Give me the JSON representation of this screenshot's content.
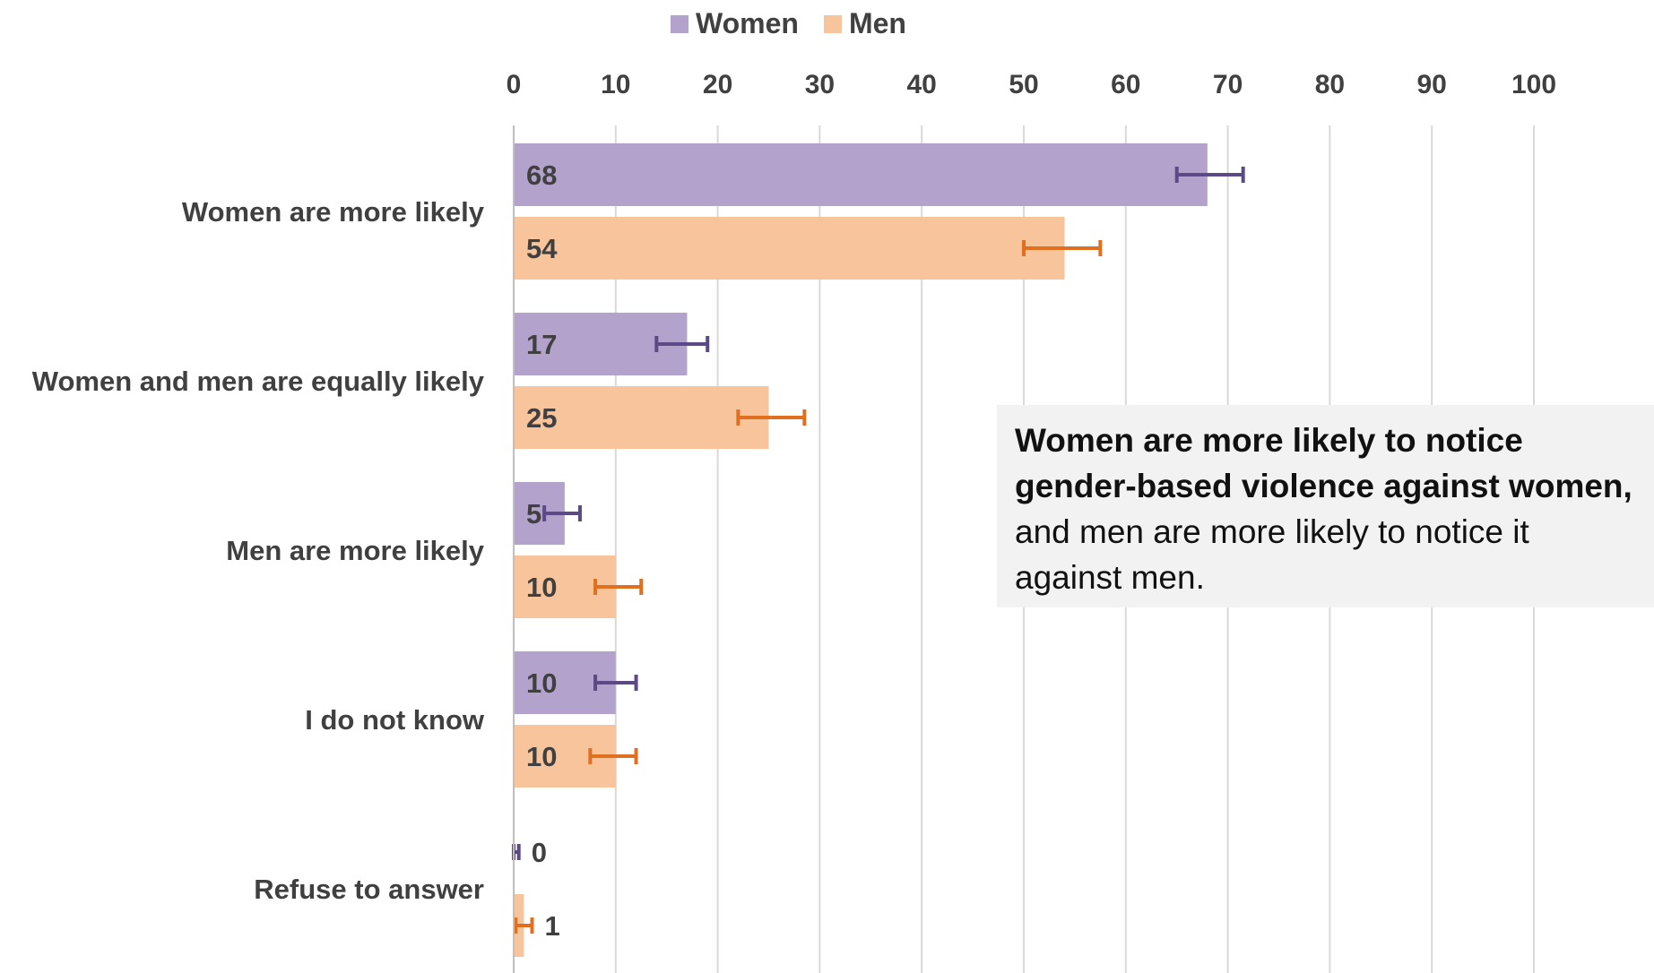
{
  "legend": {
    "women_label": "Women",
    "men_label": "Men"
  },
  "colors": {
    "women_bar": "#b3a2cc",
    "men_bar": "#f7c49b",
    "women_error": "#5b4a85",
    "men_error": "#e0701f",
    "grid": "#d9d9d9",
    "text": "#404040"
  },
  "callout": {
    "bold_text": "Women are more likely to notice gender-based violence against women,",
    "regular_text": "and men are more likely to notice it against men."
  },
  "chart_data": {
    "type": "bar",
    "orientation": "horizontal",
    "categories": [
      "Women are more likely",
      "Women and men are equally likely",
      "Men are more likely",
      "I do not know",
      "Refuse to answer"
    ],
    "series": [
      {
        "name": "Women",
        "values": [
          68,
          17,
          5,
          10,
          0
        ],
        "error_low": [
          65,
          14,
          3,
          8,
          0
        ],
        "error_high": [
          71.5,
          19,
          6.5,
          12,
          0.5
        ]
      },
      {
        "name": "Men",
        "values": [
          54,
          25,
          10,
          10,
          1
        ],
        "error_low": [
          50,
          22,
          8,
          7.5,
          0.2
        ],
        "error_high": [
          57.5,
          28.5,
          12.5,
          12,
          1.8
        ]
      }
    ],
    "data_labels": [
      [
        "68",
        "17",
        "5",
        "10",
        "0"
      ],
      [
        "54",
        "25",
        "10",
        "10",
        "1"
      ]
    ],
    "x_ticks": [
      "0",
      "10",
      "20",
      "30",
      "40",
      "50",
      "60",
      "70",
      "80",
      "90",
      "100"
    ],
    "xlim": [
      0,
      100
    ],
    "x_axis_position": "top",
    "grid": true,
    "legend_position": "top-center"
  }
}
